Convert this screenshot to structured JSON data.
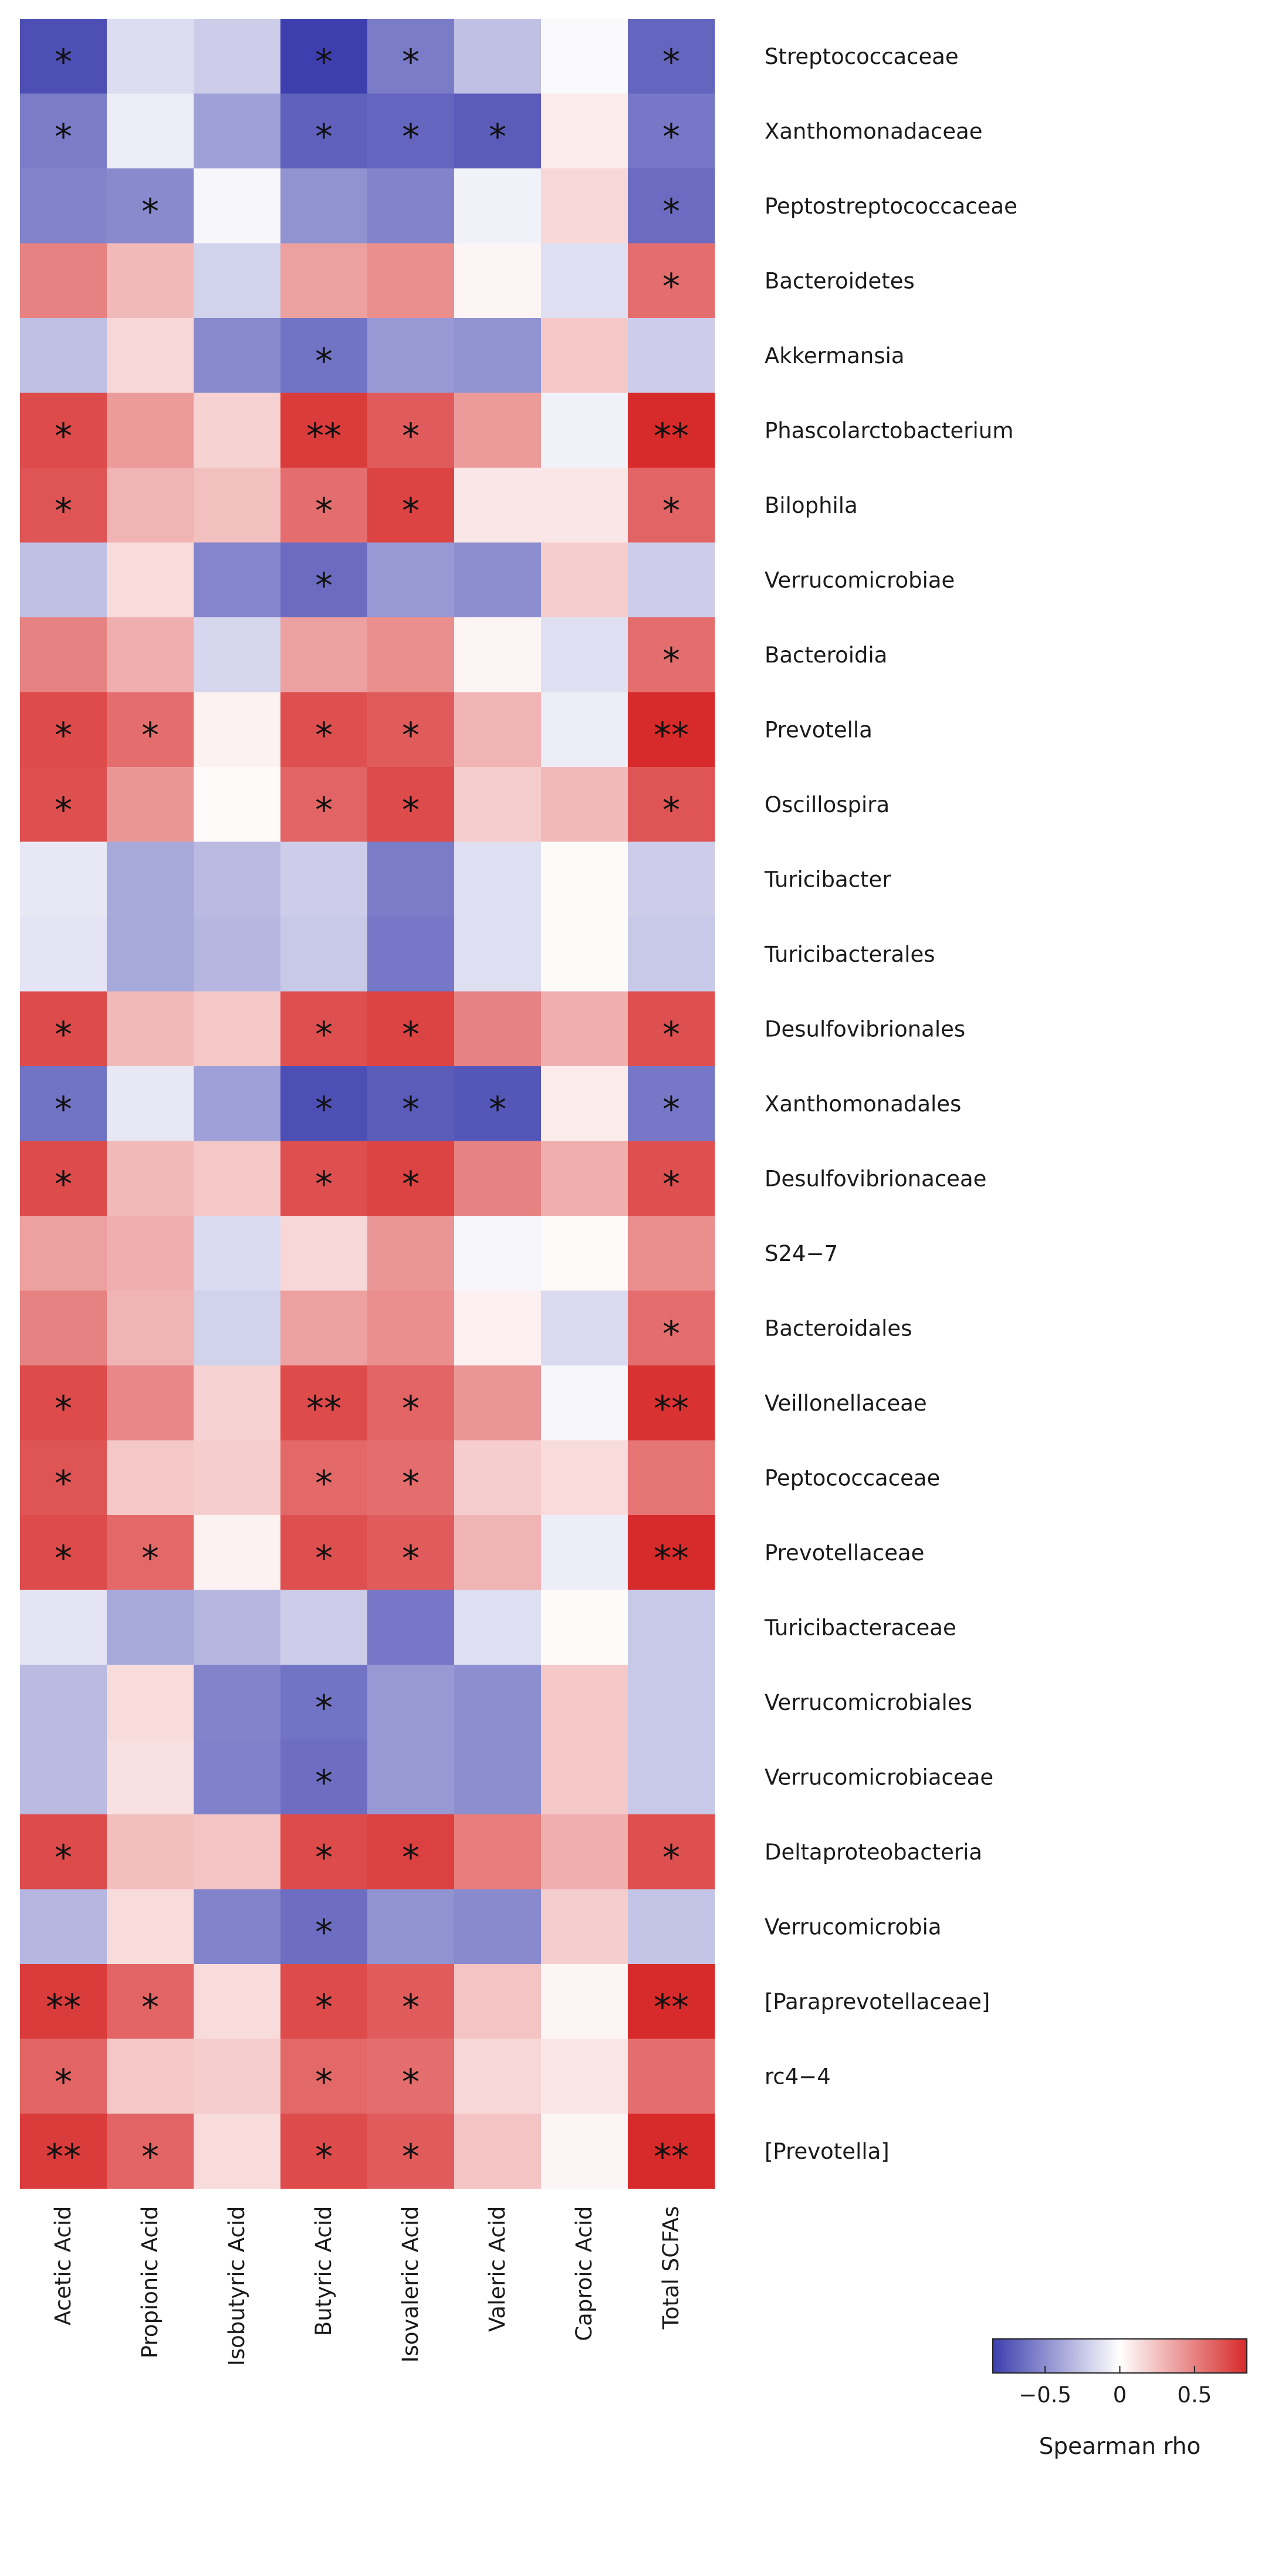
{
  "chart_data": {
    "type": "heatmap",
    "title": "",
    "xlabel": "",
    "ylabel": "",
    "columns": [
      "Acetic Acid",
      "Propionic Acid",
      "Isobutyric Acid",
      "Butyric Acid",
      "Isovaleric Acid",
      "Valeric Acid",
      "Caproic Acid",
      "Total  SCFAs"
    ],
    "rows": [
      "Streptococcaceae",
      "Xanthomonadaceae",
      "Peptostreptococcaceae",
      "Bacteroidetes",
      "Akkermansia",
      "Phascolarctobacterium",
      "Bilophila",
      "Verrucomicrobiae",
      "Bacteroidia",
      "Prevotella",
      "Oscillospira",
      "Turicibacter",
      "Turicibacterales",
      "Desulfovibrionales",
      "Xanthomonadales",
      "Desulfovibrionaceae",
      "S24−7",
      "Bacteroidales",
      "Veillonellaceae",
      "Peptococcaceae",
      "Prevotellaceae",
      "Turicibacteraceae",
      "Verrucomicrobiales",
      "Verrucomicrobiaceae",
      "Deltaproteobacteria",
      "Verrucomicrobia",
      "[Paraprevotellaceae]",
      "rc4−4",
      "[Prevotella]"
    ],
    "values": [
      [
        -0.78,
        -0.15,
        -0.22,
        -0.85,
        -0.58,
        -0.28,
        -0.02,
        -0.68
      ],
      [
        -0.58,
        -0.08,
        -0.42,
        -0.7,
        -0.68,
        -0.72,
        0.08,
        -0.6
      ],
      [
        -0.55,
        -0.52,
        -0.04,
        -0.48,
        -0.55,
        -0.06,
        0.16,
        -0.65
      ],
      [
        0.5,
        0.28,
        -0.2,
        0.38,
        0.45,
        0.04,
        -0.14,
        0.58
      ],
      [
        -0.28,
        0.16,
        -0.52,
        -0.62,
        -0.45,
        -0.48,
        0.22,
        -0.22
      ],
      [
        0.72,
        0.4,
        0.18,
        0.78,
        0.65,
        0.4,
        -0.06,
        0.85
      ],
      [
        0.68,
        0.3,
        0.25,
        0.58,
        0.75,
        0.1,
        0.1,
        0.62
      ],
      [
        -0.28,
        0.14,
        -0.54,
        -0.65,
        -0.45,
        -0.5,
        0.2,
        -0.22
      ],
      [
        0.5,
        0.32,
        -0.18,
        0.38,
        0.45,
        0.04,
        -0.14,
        0.58
      ],
      [
        0.72,
        0.58,
        0.05,
        0.7,
        0.65,
        0.3,
        -0.08,
        0.88
      ],
      [
        0.7,
        0.42,
        0.02,
        0.62,
        0.72,
        0.2,
        0.28,
        0.68
      ],
      [
        -0.1,
        -0.38,
        -0.3,
        -0.22,
        -0.58,
        -0.14,
        0.02,
        -0.22
      ],
      [
        -0.12,
        -0.38,
        -0.32,
        -0.24,
        -0.6,
        -0.14,
        0.02,
        -0.24
      ],
      [
        0.72,
        0.28,
        0.22,
        0.7,
        0.75,
        0.5,
        0.32,
        0.7
      ],
      [
        -0.62,
        -0.1,
        -0.42,
        -0.78,
        -0.72,
        -0.75,
        0.08,
        -0.6
      ],
      [
        0.72,
        0.28,
        0.22,
        0.7,
        0.75,
        0.5,
        0.32,
        0.7
      ],
      [
        0.38,
        0.32,
        -0.16,
        0.16,
        0.42,
        -0.04,
        0.02,
        0.45
      ],
      [
        0.5,
        0.3,
        -0.2,
        0.38,
        0.45,
        0.06,
        -0.16,
        0.58
      ],
      [
        0.72,
        0.48,
        0.18,
        0.72,
        0.62,
        0.42,
        -0.04,
        0.82
      ],
      [
        0.68,
        0.22,
        0.2,
        0.6,
        0.58,
        0.2,
        0.14,
        0.55
      ],
      [
        0.72,
        0.6,
        0.05,
        0.7,
        0.65,
        0.3,
        -0.08,
        0.88
      ],
      [
        -0.12,
        -0.38,
        -0.32,
        -0.22,
        -0.6,
        -0.14,
        0.02,
        -0.24
      ],
      [
        -0.3,
        0.14,
        -0.55,
        -0.62,
        -0.45,
        -0.5,
        0.22,
        -0.24
      ],
      [
        -0.3,
        0.12,
        -0.56,
        -0.64,
        -0.45,
        -0.5,
        0.22,
        -0.24
      ],
      [
        0.72,
        0.26,
        0.24,
        0.72,
        0.76,
        0.52,
        0.32,
        0.7
      ],
      [
        -0.32,
        0.14,
        -0.55,
        -0.64,
        -0.48,
        -0.52,
        0.2,
        -0.26
      ],
      [
        0.78,
        0.62,
        0.14,
        0.72,
        0.65,
        0.24,
        0.04,
        0.92
      ],
      [
        0.62,
        0.22,
        0.2,
        0.6,
        0.58,
        0.16,
        0.1,
        0.58
      ],
      [
        0.78,
        0.62,
        0.14,
        0.72,
        0.65,
        0.24,
        0.04,
        0.92
      ]
    ],
    "significance": [
      [
        "*",
        "",
        "",
        "*",
        "*",
        "",
        "",
        "*"
      ],
      [
        "*",
        "",
        "",
        "*",
        "*",
        "*",
        "",
        "*"
      ],
      [
        "",
        "*",
        "",
        "",
        "",
        "",
        "",
        "*"
      ],
      [
        "",
        "",
        "",
        "",
        "",
        "",
        "",
        "*"
      ],
      [
        "",
        "",
        "",
        "*",
        "",
        "",
        "",
        ""
      ],
      [
        "*",
        "",
        "",
        "**",
        "*",
        "",
        "",
        "**"
      ],
      [
        "*",
        "",
        "",
        "*",
        "*",
        "",
        "",
        "*"
      ],
      [
        "",
        "",
        "",
        "*",
        "",
        "",
        "",
        ""
      ],
      [
        "",
        "",
        "",
        "",
        "",
        "",
        "",
        "*"
      ],
      [
        "*",
        "*",
        "",
        "*",
        "*",
        "",
        "",
        "**"
      ],
      [
        "*",
        "",
        "",
        "*",
        "*",
        "",
        "",
        "*"
      ],
      [
        "",
        "",
        "",
        "",
        "",
        "",
        "",
        ""
      ],
      [
        "",
        "",
        "",
        "",
        "",
        "",
        "",
        ""
      ],
      [
        "*",
        "",
        "",
        "*",
        "*",
        "",
        "",
        "*"
      ],
      [
        "*",
        "",
        "",
        "*",
        "*",
        "*",
        "",
        "*"
      ],
      [
        "*",
        "",
        "",
        "*",
        "*",
        "",
        "",
        "*"
      ],
      [
        "",
        "",
        "",
        "",
        "",
        "",
        "",
        ""
      ],
      [
        "",
        "",
        "",
        "",
        "",
        "",
        "",
        "*"
      ],
      [
        "*",
        "",
        "",
        "**",
        "*",
        "",
        "",
        "**"
      ],
      [
        "*",
        "",
        "",
        "*",
        "*",
        "",
        "",
        ""
      ],
      [
        "*",
        "*",
        "",
        "*",
        "*",
        "",
        "",
        "**"
      ],
      [
        "",
        "",
        "",
        "",
        "",
        "",
        "",
        ""
      ],
      [
        "",
        "",
        "",
        "*",
        "",
        "",
        "",
        ""
      ],
      [
        "",
        "",
        "",
        "*",
        "",
        "",
        "",
        ""
      ],
      [
        "*",
        "",
        "",
        "*",
        "*",
        "",
        "",
        "*"
      ],
      [
        "",
        "",
        "",
        "*",
        "",
        "",
        "",
        ""
      ],
      [
        "**",
        "*",
        "",
        "*",
        "*",
        "",
        "",
        "**"
      ],
      [
        "*",
        "",
        "",
        "*",
        "*",
        "",
        "",
        ""
      ],
      [
        "**",
        "*",
        "",
        "*",
        "*",
        "",
        "",
        "**"
      ]
    ],
    "color_scale": {
      "low": "#3d3fae",
      "mid": "#ffffff",
      "high": "#d72a2a",
      "range": [
        -0.85,
        0.85
      ]
    },
    "colorbar": {
      "title": "Spearman rho",
      "ticks": [
        -0.5,
        0,
        0.5
      ],
      "tick_labels": [
        "−0.5",
        "0",
        "0.5"
      ],
      "placement": "bottom-right"
    }
  }
}
